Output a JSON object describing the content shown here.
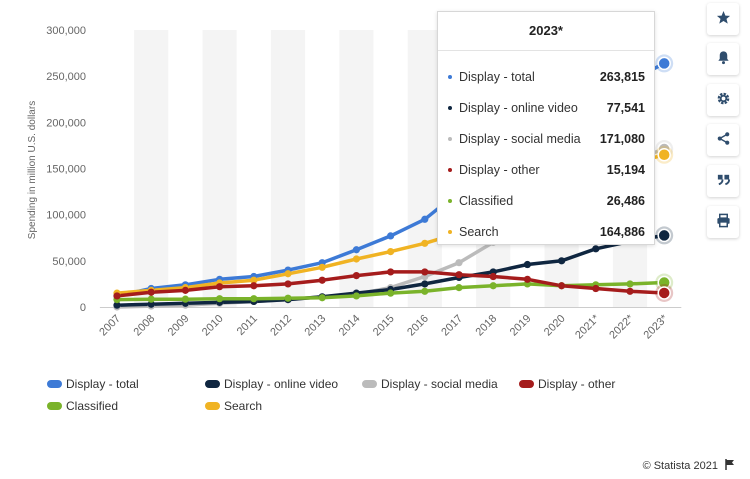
{
  "chart_data": {
    "type": "line",
    "ylabel": "Spending in million U.S. dollars",
    "ylim": [
      0,
      300000
    ],
    "yticks": [
      0,
      50000,
      100000,
      150000,
      200000,
      250000,
      300000
    ],
    "ytick_labels": [
      "0",
      "50,000",
      "100,000",
      "150,000",
      "200,000",
      "250,000",
      "300,000"
    ],
    "categories": [
      "2007",
      "2008",
      "2009",
      "2010",
      "2011",
      "2012",
      "2013",
      "2014",
      "2015",
      "2016",
      "2017",
      "2018",
      "2019",
      "2020",
      "2021*",
      "2022*",
      "2023*"
    ],
    "grid": "alternating column bands",
    "legend_position": "bottom",
    "series": [
      {
        "name": "Display - total",
        "color": "#3d7ad6",
        "values": [
          12000,
          20000,
          24000,
          30000,
          33000,
          40000,
          48000,
          62000,
          77000,
          95000,
          125000,
          150000,
          170000,
          190000,
          220000,
          245000,
          263815
        ]
      },
      {
        "name": "Display - online video",
        "color": "#0f2640",
        "values": [
          2000,
          3000,
          4000,
          5000,
          6000,
          8000,
          11000,
          15000,
          19000,
          25000,
          32000,
          38000,
          46000,
          50000,
          63000,
          71000,
          77541
        ]
      },
      {
        "name": "Display - social media",
        "color": "#bbbbbb",
        "values": [
          0,
          1000,
          2000,
          4000,
          6000,
          8000,
          11000,
          14000,
          21000,
          33000,
          48000,
          70000,
          95000,
          115000,
          140000,
          158000,
          171080
        ]
      },
      {
        "name": "Display - other",
        "color": "#a51c1c",
        "values": [
          12000,
          16000,
          18000,
          22000,
          23000,
          25000,
          29000,
          34000,
          38000,
          38000,
          35000,
          33000,
          30000,
          23000,
          20000,
          17000,
          15194
        ]
      },
      {
        "name": "Classified",
        "color": "#7ab32a",
        "values": [
          8000,
          8500,
          8500,
          9000,
          9000,
          9500,
          10000,
          12000,
          15000,
          17000,
          21000,
          23000,
          25000,
          23000,
          24000,
          25000,
          26486
        ]
      },
      {
        "name": "Search",
        "color": "#f0b323",
        "values": [
          15000,
          18000,
          21000,
          26000,
          29000,
          36000,
          43000,
          52000,
          60000,
          69000,
          80000,
          95000,
          110000,
          125000,
          140000,
          155000,
          164886
        ]
      }
    ]
  },
  "tooltip": {
    "title": "2023*",
    "rows": [
      {
        "name": "Display - total",
        "value": "263,815",
        "color": "#3d7ad6"
      },
      {
        "name": "Display - online video",
        "value": "77,541",
        "color": "#0f2640"
      },
      {
        "name": "Display - social media",
        "value": "171,080",
        "color": "#bbbbbb"
      },
      {
        "name": "Display - other",
        "value": "15,194",
        "color": "#a51c1c"
      },
      {
        "name": "Classified",
        "value": "26,486",
        "color": "#7ab32a"
      },
      {
        "name": "Search",
        "value": "164,886",
        "color": "#f0b323"
      }
    ]
  },
  "legend": {
    "items": [
      {
        "label": "Display - total",
        "color": "#3d7ad6"
      },
      {
        "label": "Display - online video",
        "color": "#0f2640"
      },
      {
        "label": "Display - social media",
        "color": "#bbbbbb"
      },
      {
        "label": "Display - other",
        "color": "#a51c1c"
      },
      {
        "label": "Classified",
        "color": "#7ab32a"
      },
      {
        "label": "Search",
        "color": "#f0b323"
      }
    ]
  },
  "sidebar": {
    "buttons": [
      {
        "icon": "star-icon"
      },
      {
        "icon": "bell-icon"
      },
      {
        "icon": "gear-icon"
      },
      {
        "icon": "share-icon"
      },
      {
        "icon": "quote-icon"
      },
      {
        "icon": "print-icon"
      }
    ]
  },
  "credit": {
    "text": "© Statista 2021"
  },
  "accent_color": "#2f4d6d"
}
